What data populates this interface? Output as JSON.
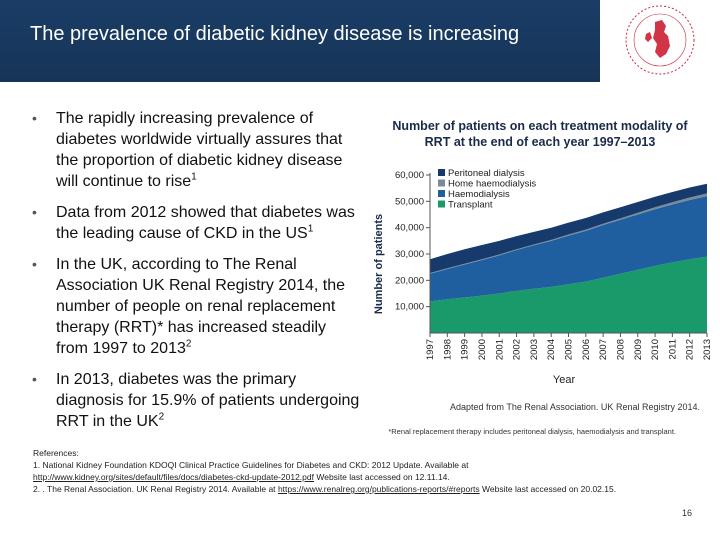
{
  "slide": {
    "title": "The prevalence of diabetic kidney disease is increasing",
    "page_number": "16"
  },
  "bullets": [
    {
      "text": "The rapidly increasing prevalence of diabetes worldwide virtually assures that the proportion of diabetic kidney disease will continue to rise",
      "ref": "1"
    },
    {
      "text": "Data from 2012 showed that diabetes was the leading cause of CKD in the US",
      "ref": "1"
    },
    {
      "text": "In the UK, according to The Renal Association UK Renal Registry 2014, the number of people on renal replacement therapy (RRT)* has increased steadily from 1997 to 2013",
      "ref": "2"
    },
    {
      "text": "In 2013, diabetes was the primary diagnosis for 15.9% of patients undergoing RRT in the UK",
      "ref": "2"
    }
  ],
  "chart_data": {
    "type": "area",
    "stacked": true,
    "title": "Number of patients on each treatment modality of RRT at the end of each year 1997–2013",
    "xlabel": "Year",
    "ylabel": "Number of patients",
    "ylim": [
      0,
      60000
    ],
    "y_ticks": [
      "10,000",
      "20,000",
      "30,000",
      "40,000",
      "50,000",
      "60,000"
    ],
    "x": [
      "1997",
      "1998",
      "1999",
      "2000",
      "2001",
      "2002",
      "2003",
      "2004",
      "2005",
      "2006",
      "2007",
      "2008",
      "2009",
      "2010",
      "2011",
      "2012",
      "2013"
    ],
    "legend_position": "top-left",
    "series": [
      {
        "name": "Transplant",
        "color": "#1a9a6a",
        "values": [
          12000,
          12800,
          13500,
          14200,
          15000,
          16000,
          16800,
          17500,
          18500,
          19500,
          21000,
          22500,
          24000,
          25500,
          26800,
          28000,
          29000
        ]
      },
      {
        "name": "Haemodialysis",
        "color": "#1f5fa0",
        "values": [
          10500,
          11500,
          12500,
          13500,
          14500,
          15500,
          16500,
          17500,
          18500,
          19300,
          20000,
          20500,
          21000,
          21500,
          22000,
          22500,
          23000
        ]
      },
      {
        "name": "Home haemodialysis",
        "color": "#7a8a99",
        "values": [
          300,
          300,
          300,
          300,
          300,
          300,
          300,
          350,
          400,
          450,
          500,
          550,
          650,
          750,
          850,
          950,
          1000
        ]
      },
      {
        "name": "Peritoneal dialysis",
        "color": "#163a6b",
        "values": [
          5200,
          5400,
          5500,
          5400,
          5200,
          5000,
          4800,
          4600,
          4500,
          4400,
          4300,
          4200,
          4100,
          4000,
          3900,
          3800,
          3700
        ]
      }
    ]
  },
  "source": "Adapted from The Renal Association. UK Renal Registry 2014.",
  "footnote": "*Renal replacement therapy includes peritoneal dialysis, haemodialysis and transplant.",
  "references": {
    "heading": "References:",
    "ref1_text": "1. National Kidney Foundation KDOQI Clinical Practice Guidelines for Diabetes and CKD: 2012 Update. Available at",
    "ref1_link": "http://www.kidney.org/sites/default/files/docs/diabetes-ckd-update-2012.pdf",
    "ref1_tail": "Website last accessed on 12.11.14.",
    "ref2_text": "2. . The Renal Association. UK Renal Registry 2014. Available at",
    "ref2_link": "https://www.renalreg.org/publications-reports/#reports",
    "ref2_tail": "Website last accessed on 20.02.15."
  }
}
